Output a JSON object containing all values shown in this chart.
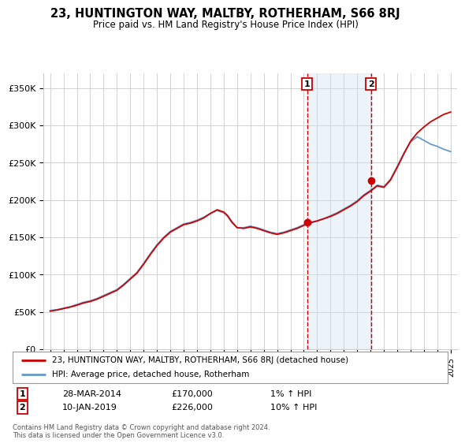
{
  "title": "23, HUNTINGTON WAY, MALTBY, ROTHERHAM, S66 8RJ",
  "subtitle": "Price paid vs. HM Land Registry's House Price Index (HPI)",
  "ylim": [
    0,
    370000
  ],
  "xlim_start": 1994.5,
  "xlim_end": 2025.5,
  "sale1": {
    "date_num": 2014.25,
    "price": 170000,
    "label": "1",
    "date_str": "28-MAR-2014",
    "hpi_change": "1% ↑ HPI"
  },
  "sale2": {
    "date_num": 2019.04,
    "price": 226000,
    "label": "2",
    "date_str": "10-JAN-2019",
    "hpi_change": "10% ↑ HPI"
  },
  "legend_line1": "23, HUNTINGTON WAY, MALTBY, ROTHERHAM, S66 8RJ (detached house)",
  "legend_line2": "HPI: Average price, detached house, Rotherham",
  "footer": "Contains HM Land Registry data © Crown copyright and database right 2024.\nThis data is licensed under the Open Government Licence v3.0.",
  "line_color_red": "#cc0000",
  "line_color_blue": "#6699cc",
  "shade_color": "#cce0f0",
  "grid_color": "#cccccc",
  "background_color": "#ffffff",
  "yticks": [
    0,
    50000,
    100000,
    150000,
    200000,
    250000,
    300000,
    350000
  ],
  "ylabels": [
    "£0",
    "£50K",
    "£100K",
    "£150K",
    "£200K",
    "£250K",
    "£300K",
    "£350K"
  ]
}
